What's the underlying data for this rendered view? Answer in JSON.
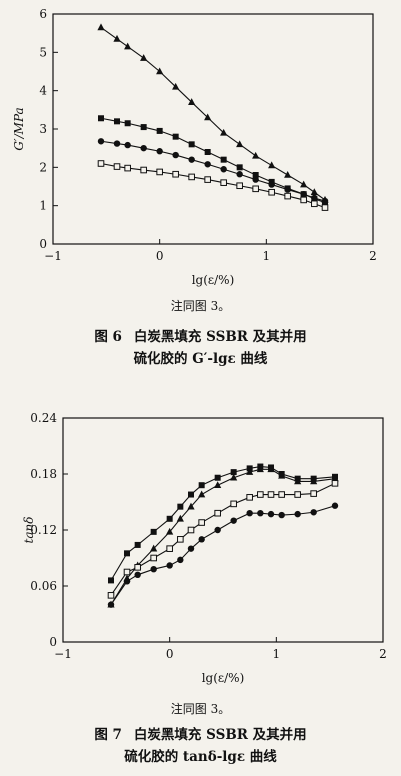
{
  "figures": [
    {
      "note": "注同图 3。",
      "caption_number": "图 6",
      "caption_line1": "白炭黑填充 SSBR 及其并用",
      "caption_line2": "硫化胶的 G′-lgε 曲线",
      "chart_data": {
        "type": "line",
        "ylabel": "G′/MPa",
        "xlabel": "lg(ε/%)",
        "xlim": [
          -1,
          2
        ],
        "ylim": [
          0,
          6
        ],
        "xticks": [
          -1,
          0,
          1,
          2
        ],
        "yticks": [
          0,
          1,
          2,
          3,
          4,
          5,
          6
        ],
        "grid": false,
        "series": [
          {
            "marker": "triangle",
            "points": [
              [
                -0.55,
                5.65
              ],
              [
                -0.4,
                5.35
              ],
              [
                -0.3,
                5.15
              ],
              [
                -0.15,
                4.85
              ],
              [
                0.0,
                4.5
              ],
              [
                0.15,
                4.1
              ],
              [
                0.3,
                3.7
              ],
              [
                0.45,
                3.3
              ],
              [
                0.6,
                2.9
              ],
              [
                0.75,
                2.6
              ],
              [
                0.9,
                2.3
              ],
              [
                1.05,
                2.05
              ],
              [
                1.2,
                1.8
              ],
              [
                1.35,
                1.55
              ],
              [
                1.45,
                1.35
              ],
              [
                1.55,
                1.15
              ]
            ]
          },
          {
            "marker": "filled-square",
            "points": [
              [
                -0.55,
                3.28
              ],
              [
                -0.4,
                3.2
              ],
              [
                -0.3,
                3.15
              ],
              [
                -0.15,
                3.05
              ],
              [
                0.0,
                2.95
              ],
              [
                0.15,
                2.8
              ],
              [
                0.3,
                2.6
              ],
              [
                0.45,
                2.4
              ],
              [
                0.6,
                2.2
              ],
              [
                0.75,
                2.0
              ],
              [
                0.9,
                1.8
              ],
              [
                1.05,
                1.62
              ],
              [
                1.2,
                1.45
              ],
              [
                1.35,
                1.3
              ],
              [
                1.45,
                1.18
              ],
              [
                1.55,
                1.08
              ]
            ]
          },
          {
            "marker": "filled-circle",
            "points": [
              [
                -0.55,
                2.68
              ],
              [
                -0.4,
                2.62
              ],
              [
                -0.3,
                2.58
              ],
              [
                -0.15,
                2.5
              ],
              [
                0.0,
                2.42
              ],
              [
                0.15,
                2.32
              ],
              [
                0.3,
                2.2
              ],
              [
                0.45,
                2.08
              ],
              [
                0.6,
                1.95
              ],
              [
                0.75,
                1.82
              ],
              [
                0.9,
                1.68
              ],
              [
                1.05,
                1.55
              ],
              [
                1.2,
                1.42
              ],
              [
                1.35,
                1.3
              ],
              [
                1.45,
                1.2
              ],
              [
                1.55,
                1.12
              ]
            ]
          },
          {
            "marker": "open-square",
            "points": [
              [
                -0.55,
                2.1
              ],
              [
                -0.4,
                2.02
              ],
              [
                -0.3,
                1.98
              ],
              [
                -0.15,
                1.93
              ],
              [
                0.0,
                1.88
              ],
              [
                0.15,
                1.82
              ],
              [
                0.3,
                1.75
              ],
              [
                0.45,
                1.68
              ],
              [
                0.6,
                1.6
              ],
              [
                0.75,
                1.52
              ],
              [
                0.9,
                1.44
              ],
              [
                1.05,
                1.35
              ],
              [
                1.2,
                1.25
              ],
              [
                1.35,
                1.15
              ],
              [
                1.45,
                1.05
              ],
              [
                1.55,
                0.95
              ]
            ]
          }
        ]
      }
    },
    {
      "note": "注同图 3。",
      "caption_number": "图 7",
      "caption_line1": "白炭黑填充 SSBR 及其并用",
      "caption_line2": "硫化胶的 tanδ-lgε 曲线",
      "chart_data": {
        "type": "line",
        "ylabel": "tanδ",
        "xlabel": "lg(ε/%)",
        "xlim": [
          -1,
          2
        ],
        "ylim": [
          0,
          0.24
        ],
        "xticks": [
          -1,
          0,
          1,
          2
        ],
        "yticks": [
          0,
          0.06,
          0.12,
          0.18,
          0.24
        ],
        "grid": false,
        "series": [
          {
            "marker": "filled-square",
            "points": [
              [
                -0.55,
                0.066
              ],
              [
                -0.4,
                0.095
              ],
              [
                -0.3,
                0.104
              ],
              [
                -0.15,
                0.118
              ],
              [
                0.0,
                0.132
              ],
              [
                0.1,
                0.145
              ],
              [
                0.2,
                0.158
              ],
              [
                0.3,
                0.168
              ],
              [
                0.45,
                0.176
              ],
              [
                0.6,
                0.182
              ],
              [
                0.75,
                0.186
              ],
              [
                0.85,
                0.188
              ],
              [
                0.95,
                0.187
              ],
              [
                1.05,
                0.18
              ],
              [
                1.2,
                0.175
              ],
              [
                1.35,
                0.175
              ],
              [
                1.55,
                0.177
              ]
            ]
          },
          {
            "marker": "triangle",
            "points": [
              [
                -0.55,
                0.04
              ],
              [
                -0.4,
                0.068
              ],
              [
                -0.3,
                0.082
              ],
              [
                -0.15,
                0.1
              ],
              [
                0.0,
                0.118
              ],
              [
                0.1,
                0.132
              ],
              [
                0.2,
                0.145
              ],
              [
                0.3,
                0.158
              ],
              [
                0.45,
                0.168
              ],
              [
                0.6,
                0.176
              ],
              [
                0.75,
                0.182
              ],
              [
                0.85,
                0.185
              ],
              [
                0.95,
                0.185
              ],
              [
                1.05,
                0.178
              ],
              [
                1.2,
                0.172
              ],
              [
                1.35,
                0.172
              ],
              [
                1.55,
                0.175
              ]
            ]
          },
          {
            "marker": "open-square",
            "points": [
              [
                -0.55,
                0.05
              ],
              [
                -0.4,
                0.075
              ],
              [
                -0.3,
                0.08
              ],
              [
                -0.15,
                0.09
              ],
              [
                0.0,
                0.1
              ],
              [
                0.1,
                0.11
              ],
              [
                0.2,
                0.12
              ],
              [
                0.3,
                0.128
              ],
              [
                0.45,
                0.138
              ],
              [
                0.6,
                0.148
              ],
              [
                0.75,
                0.155
              ],
              [
                0.85,
                0.158
              ],
              [
                0.95,
                0.158
              ],
              [
                1.05,
                0.158
              ],
              [
                1.2,
                0.158
              ],
              [
                1.35,
                0.159
              ],
              [
                1.55,
                0.17
              ]
            ]
          },
          {
            "marker": "filled-circle",
            "points": [
              [
                -0.55,
                0.04
              ],
              [
                -0.4,
                0.065
              ],
              [
                -0.3,
                0.072
              ],
              [
                -0.15,
                0.078
              ],
              [
                0.0,
                0.082
              ],
              [
                0.1,
                0.088
              ],
              [
                0.2,
                0.1
              ],
              [
                0.3,
                0.11
              ],
              [
                0.45,
                0.12
              ],
              [
                0.6,
                0.13
              ],
              [
                0.75,
                0.138
              ],
              [
                0.85,
                0.138
              ],
              [
                0.95,
                0.137
              ],
              [
                1.05,
                0.136
              ],
              [
                1.2,
                0.137
              ],
              [
                1.35,
                0.139
              ],
              [
                1.55,
                0.146
              ]
            ]
          }
        ]
      }
    }
  ]
}
